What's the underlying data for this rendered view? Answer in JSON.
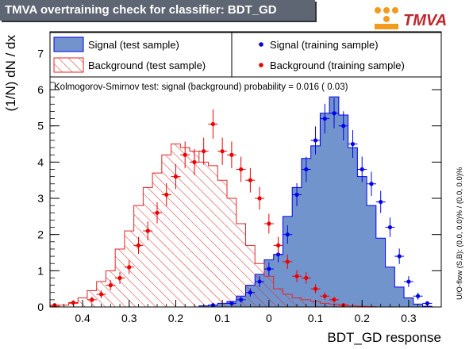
{
  "header": {
    "title": "TMVA overtraining check for classifier: BDT_GD",
    "logo_text": "TMVA"
  },
  "side_note": "U/O-flow (S,B): (0.0, 0.0)% / (0.0, 0.0)%",
  "colors": {
    "signal_fill": "#7294cc",
    "signal_line": "#0000ee",
    "background_hatch": "#e32626",
    "title_bg": "#5e6673"
  },
  "chart_data": {
    "type": "histogram",
    "title": "TMVA overtraining check for classifier: BDT_GD",
    "xlabel": "BDT_GD response",
    "ylabel": "(1/N) dN / dx",
    "xlim": [
      -0.47,
      0.37
    ],
    "ylim": [
      0,
      7.6
    ],
    "x_axis_reversed_labels": true,
    "x_ticks": [
      -0.4,
      -0.3,
      -0.2,
      -0.1,
      0.0,
      0.1,
      0.2,
      0.3
    ],
    "x_tick_labels": [
      "0.4",
      "0.3",
      "0.2",
      "0.1",
      "0",
      "0.1",
      "0.2",
      "0.3"
    ],
    "y_ticks": [
      0,
      1,
      2,
      3,
      4,
      5,
      6,
      7
    ],
    "y_tick_labels": [
      "0",
      "1",
      "2",
      "3",
      "4",
      "5",
      "6",
      "7"
    ],
    "annotation": "Kolmogorov-Smirnov test: signal (background) probability = 0.016 ( 0.03)",
    "legend": {
      "placement": "top",
      "entries": [
        {
          "label": "Signal (test sample)",
          "style": "filled"
        },
        {
          "label": "Signal (training sample)",
          "style": "marker"
        },
        {
          "label": "Background (test sample)",
          "style": "hatched"
        },
        {
          "label": "Background (training sample)",
          "style": "marker"
        }
      ]
    },
    "bin_edges": [
      -0.47,
      -0.45,
      -0.43,
      -0.41,
      -0.39,
      -0.37,
      -0.35,
      -0.33,
      -0.31,
      -0.29,
      -0.27,
      -0.25,
      -0.23,
      -0.21,
      -0.19,
      -0.17,
      -0.15,
      -0.13,
      -0.11,
      -0.09,
      -0.07,
      -0.05,
      -0.03,
      -0.01,
      0.01,
      0.03,
      0.05,
      0.07,
      0.09,
      0.11,
      0.13,
      0.15,
      0.17,
      0.19,
      0.21,
      0.23,
      0.25,
      0.27,
      0.29,
      0.31,
      0.33,
      0.35,
      0.37
    ],
    "series": [
      {
        "name": "Signal (test sample)",
        "style": "filled-histogram",
        "values": [
          0,
          0,
          0,
          0,
          0,
          0,
          0,
          0,
          0,
          0,
          0,
          0,
          0,
          0,
          0,
          0,
          0.03,
          0.05,
          0.1,
          0.15,
          0.3,
          0.6,
          0.9,
          1.3,
          1.45,
          2.5,
          3.3,
          4.1,
          4.45,
          5.35,
          5.8,
          5.3,
          4.4,
          3.6,
          2.8,
          1.9,
          1.1,
          0.55,
          0.25,
          0.08,
          0.02,
          0
        ]
      },
      {
        "name": "Background (test sample)",
        "style": "hatched-histogram",
        "values": [
          0.02,
          0.05,
          0.1,
          0.25,
          0.45,
          0.7,
          1.0,
          1.6,
          2.1,
          2.8,
          3.3,
          3.7,
          4.2,
          4.5,
          4.4,
          4.3,
          4.0,
          3.9,
          3.5,
          3.0,
          2.3,
          1.7,
          1.2,
          0.85,
          0.5,
          0.35,
          0.25,
          0.2,
          0.15,
          0.1,
          0.08,
          0.05,
          0.03,
          0.02,
          0.01,
          0,
          0,
          0,
          0,
          0,
          0,
          0
        ]
      },
      {
        "name": "Signal (training sample)",
        "style": "marker",
        "x": [
          -0.12,
          -0.08,
          -0.06,
          -0.04,
          -0.02,
          0.0,
          0.02,
          0.04,
          0.06,
          0.08,
          0.1,
          0.12,
          0.14,
          0.16,
          0.18,
          0.2,
          0.22,
          0.24,
          0.26,
          0.28,
          0.3,
          0.32,
          0.34
        ],
        "y": [
          0.05,
          0.1,
          0.2,
          0.4,
          0.7,
          1.05,
          1.45,
          2.0,
          3.1,
          3.8,
          4.6,
          5.2,
          5.35,
          5.0,
          4.5,
          3.8,
          3.4,
          2.9,
          2.2,
          1.4,
          0.7,
          0.3,
          0.1
        ]
      },
      {
        "name": "Background (training sample)",
        "style": "marker",
        "x": [
          -0.46,
          -0.42,
          -0.38,
          -0.36,
          -0.34,
          -0.32,
          -0.3,
          -0.28,
          -0.26,
          -0.24,
          -0.22,
          -0.2,
          -0.18,
          -0.16,
          -0.14,
          -0.12,
          -0.1,
          -0.08,
          -0.06,
          -0.04,
          -0.02,
          0.0,
          0.02,
          0.04,
          0.06,
          0.08,
          0.1,
          0.12,
          0.14,
          0.16
        ],
        "y": [
          0.05,
          0.12,
          0.2,
          0.35,
          0.6,
          0.8,
          1.1,
          1.7,
          2.1,
          2.6,
          3.1,
          3.6,
          4.2,
          4.0,
          4.3,
          5.05,
          4.3,
          4.2,
          3.8,
          3.5,
          3.0,
          2.3,
          1.7,
          1.25,
          0.85,
          0.8,
          0.5,
          0.3,
          0.2,
          0.05
        ]
      }
    ]
  }
}
